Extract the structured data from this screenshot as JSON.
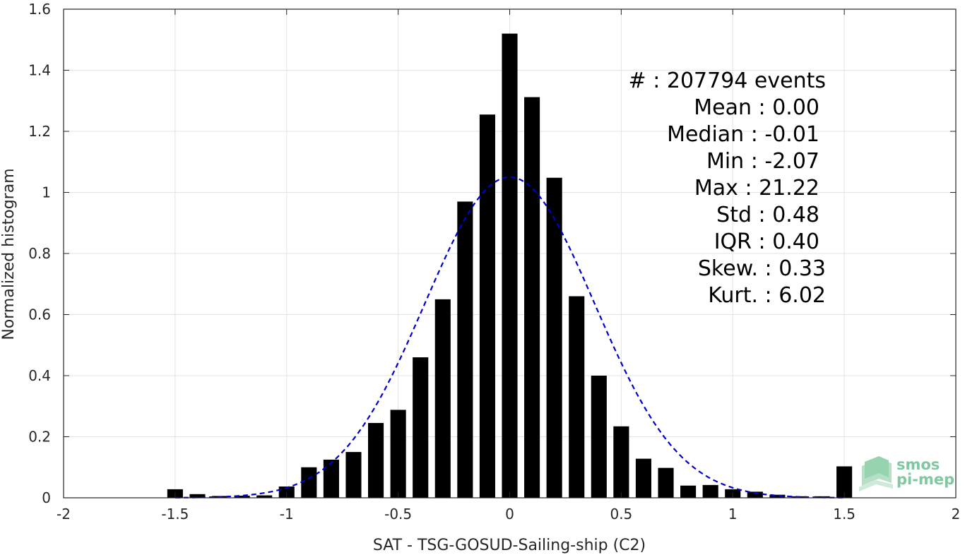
{
  "chart_data": {
    "type": "bar",
    "xlabel": "SAT - TSG-GOSUD-Sailing-ship (C2)",
    "ylabel": "Normalized histogram",
    "xlim": [
      -2,
      2
    ],
    "ylim": [
      0,
      1.6
    ],
    "xticks": [
      "-2",
      "-1.5",
      "-1",
      "-0.5",
      "0",
      "0.5",
      "1",
      "1.5",
      "2"
    ],
    "yticks": [
      "0",
      "0.2",
      "0.4",
      "0.6",
      "0.8",
      "1",
      "1.2",
      "1.4",
      "1.6"
    ],
    "grid": true,
    "bar_color": "#000000",
    "fit_color": "#0000cc",
    "x": [
      -1.5,
      -1.4,
      -1.3,
      -1.2,
      -1.1,
      -1.0,
      -0.9,
      -0.8,
      -0.7,
      -0.6,
      -0.5,
      -0.4,
      -0.3,
      -0.2,
      -0.1,
      0.0,
      0.1,
      0.2,
      0.3,
      0.4,
      0.5,
      0.6,
      0.7,
      0.8,
      0.9,
      1.0,
      1.1,
      1.2,
      1.3,
      1.4,
      1.5
    ],
    "values": [
      0.028,
      0.012,
      0.006,
      0.007,
      0.008,
      0.037,
      0.1,
      0.125,
      0.15,
      0.245,
      0.288,
      0.46,
      0.65,
      0.97,
      1.255,
      1.52,
      1.312,
      1.048,
      0.66,
      0.4,
      0.234,
      0.128,
      0.098,
      0.04,
      0.042,
      0.028,
      0.02,
      0.01,
      0.005,
      0.005,
      0.103
    ],
    "fit": {
      "type": "gaussian",
      "mean": 0.0,
      "std": 0.38,
      "peak": 1.05,
      "style": "dashed"
    },
    "annotations": [
      {
        "label": "#  ",
        "value": ": 207794 events"
      },
      {
        "label": "Mean ",
        "value": ": 0.00"
      },
      {
        "label": "Median ",
        "value": ": -0.01"
      },
      {
        "label": "Min ",
        "value": ": -2.07"
      },
      {
        "label": "Max ",
        "value": ": 21.22"
      },
      {
        "label": "Std ",
        "value": ": 0.48"
      },
      {
        "label": "IQR ",
        "value": ": 0.40"
      },
      {
        "label": "Skew. ",
        "value": ": 0.33"
      },
      {
        "label": "Kurt. ",
        "value": ": 6.02"
      }
    ]
  },
  "logo": {
    "line1": "smos",
    "line2": "pi-mep",
    "color": "#7fc8a0"
  }
}
